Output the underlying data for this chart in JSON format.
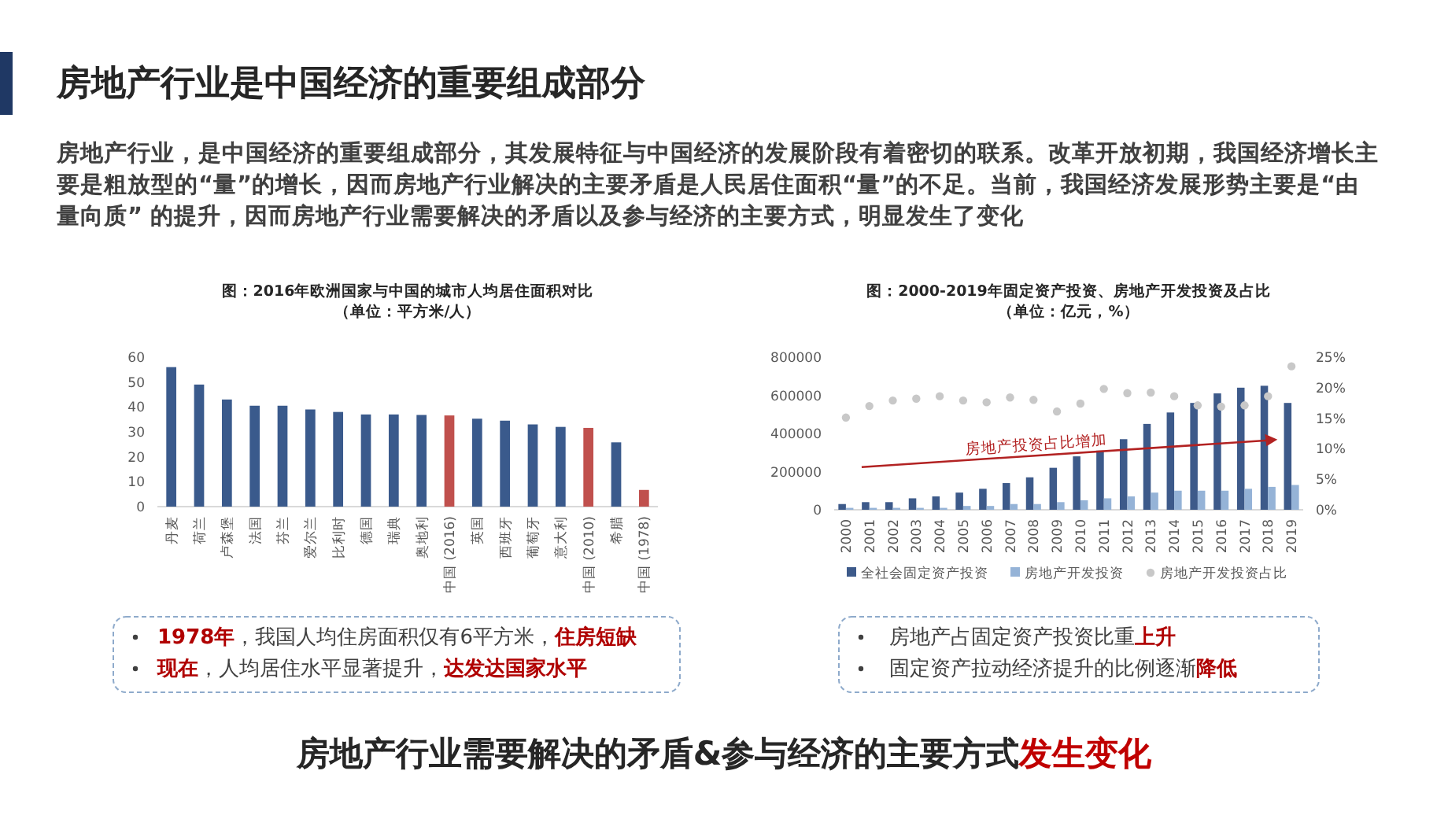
{
  "chart_data": [
    {
      "type": "other",
      "title": "房地产行业是中国经济的重要组成部分",
      "subtitle": "房地产行业，是中国经济的重要组成部分，其发展特征与中国经济的发展阶段有着密切的联系。改革开放初期，我国经济增长主要是粗放型的“量”的增长，因而房地产行业解决的主要矛盾是人民居住面积“量”的不足。当前，我国经济发展形势主要是“由量向质” 的提升，因而房地产行业需要解决的矛盾以及参与经济的主要方式，明显发生了变化"
    },
    {
      "type": "bar",
      "title": "图：2016年欧洲国家与中国的城市人均居住面积对比",
      "subtitle": "（单位：平方米/人）",
      "categories": [
        "丹麦",
        "荷兰",
        "卢森堡",
        "法国",
        "芬兰",
        "爱尔兰",
        "比利时",
        "德国",
        "瑞典",
        "奥地利",
        "中国 (2016)",
        "英国",
        "西班牙",
        "葡萄牙",
        "意大利",
        "中国 (2010)",
        "希腊",
        "中国 (1978)"
      ],
      "values": [
        56,
        49,
        43,
        40.5,
        40.5,
        39,
        38,
        37,
        37,
        36.8,
        36.6,
        35.3,
        34.5,
        33,
        32,
        31.6,
        25.8,
        6.7
      ],
      "colors": [
        "#3a5a8c",
        "#3a5a8c",
        "#3a5a8c",
        "#3a5a8c",
        "#3a5a8c",
        "#3a5a8c",
        "#3a5a8c",
        "#3a5a8c",
        "#3a5a8c",
        "#3a5a8c",
        "#c0504d",
        "#3a5a8c",
        "#3a5a8c",
        "#3a5a8c",
        "#3a5a8c",
        "#c0504d",
        "#3a5a8c",
        "#c0504d"
      ],
      "ylim": [
        0,
        60
      ],
      "yticks": [
        0,
        10,
        20,
        30,
        40,
        50,
        60
      ],
      "annotations": [
        "**1978年**，我国人均住房面积仅有6平方米，**住房短缺**",
        "**现在**，人均居住水平显著提升，**达发达国家水平**"
      ]
    },
    {
      "type": "bar",
      "title": "图：2000-2019年固定资产投资、房地产开发投资及占比",
      "subtitle": "（单位：亿元，%）",
      "categories": [
        "2000",
        "2001",
        "2002",
        "2003",
        "2004",
        "2005",
        "2006",
        "2007",
        "2008",
        "2009",
        "2010",
        "2011",
        "2012",
        "2013",
        "2014",
        "2015",
        "2016",
        "2017",
        "2018",
        "2019"
      ],
      "series": [
        {
          "name": "全社会固定资产投资",
          "color": "#3d5a8a",
          "values": [
            30000,
            40000,
            40000,
            60000,
            70000,
            90000,
            110000,
            140000,
            170000,
            220000,
            280000,
            310000,
            370000,
            450000,
            510000,
            560000,
            610000,
            640000,
            650000,
            560000
          ]
        },
        {
          "name": "房地产开发投资",
          "color": "#95b3d7",
          "values": [
            10000,
            10000,
            10000,
            10000,
            10000,
            20000,
            20000,
            30000,
            30000,
            40000,
            50000,
            60000,
            70000,
            90000,
            100000,
            100000,
            100000,
            110000,
            120000,
            130000
          ]
        },
        {
          "name": "房地产开发投资占比",
          "color": "#c8c8c8",
          "type": "scatter",
          "axis": "y2",
          "marker": "circle",
          "values": [
            15.1,
            17.0,
            17.9,
            18.2,
            18.6,
            17.9,
            17.6,
            18.4,
            18.0,
            16.1,
            17.4,
            19.8,
            19.1,
            19.2,
            18.6,
            17.1,
            16.9,
            17.1,
            18.6,
            23.5
          ]
        }
      ],
      "ylim": [
        0,
        800000
      ],
      "yticks": [
        0,
        200000,
        400000,
        600000,
        800000
      ],
      "y2lim": [
        0,
        25
      ],
      "y2ticks": [
        {
          "value": 0,
          "label": "0%"
        },
        {
          "value": 5,
          "label": "5%"
        },
        {
          "value": 10,
          "label": "10%"
        },
        {
          "value": 15,
          "label": "15%"
        },
        {
          "value": 20,
          "label": "20%"
        },
        {
          "value": 25,
          "label": "25%"
        }
      ],
      "legend": "bottom",
      "annotations": [
        "房地产投资占比增加",
        "房地产占固定资产投资比重**上升**",
        "固定资产拉动经济提升的比例逐渐**降低**"
      ]
    },
    {
      "type": "other",
      "title": "房地产行业需要解决的矛盾&参与经济的主要方式**发生变化**"
    }
  ]
}
